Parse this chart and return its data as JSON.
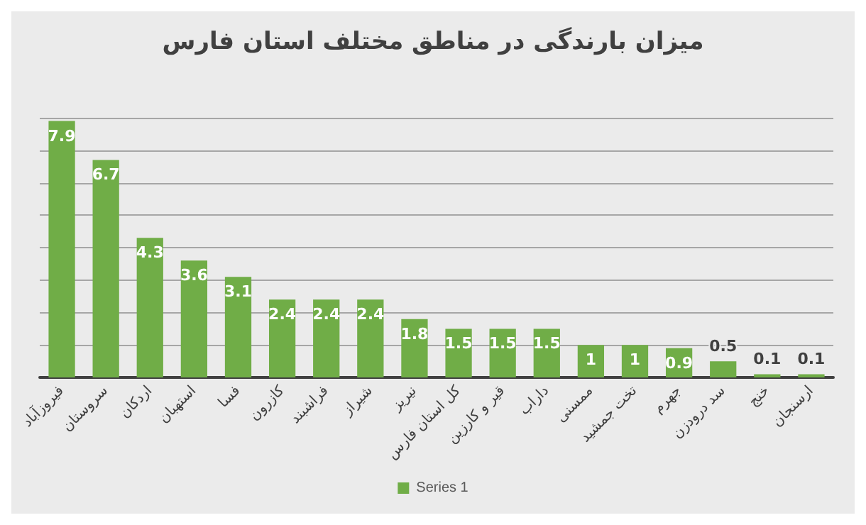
{
  "chart_data": {
    "type": "bar",
    "title": "میزان بارندگی در مناطق مختلف استان فارس",
    "categories": [
      "فیروزآباد",
      "سروستان",
      "اردکان",
      "استهبان",
      "فسا",
      "کازرون",
      "فراشبند",
      "شیراز",
      "نیریز",
      "کل استان فارس",
      "قیر و کارزین",
      "داراب",
      "ممسنی",
      "تخت جمشید",
      "جهرم",
      "سد درودزن",
      "خنج",
      "ارسنجان"
    ],
    "series": [
      {
        "name": "Series 1",
        "color": "#70ad47",
        "values": [
          7.9,
          6.7,
          4.3,
          3.6,
          3.1,
          2.4,
          2.4,
          2.4,
          1.8,
          1.5,
          1.5,
          1.5,
          1,
          1,
          0.9,
          0.5,
          0.1,
          0.1
        ]
      }
    ],
    "ylim": [
      0,
      8
    ],
    "yticks": [
      {
        "value": 0,
        "label": null
      },
      {
        "value": 1,
        "label": null
      },
      {
        "value": 2,
        "label": null
      },
      {
        "value": 3,
        "label": null
      },
      {
        "value": 4,
        "label": null
      },
      {
        "value": 5,
        "label": null
      },
      {
        "value": 6,
        "label": null
      },
      {
        "value": 7,
        "label": null
      },
      {
        "value": 8,
        "label": null
      }
    ],
    "tick_labels": "x",
    "grid": "y",
    "data_labels": true,
    "legend": "bottom"
  }
}
